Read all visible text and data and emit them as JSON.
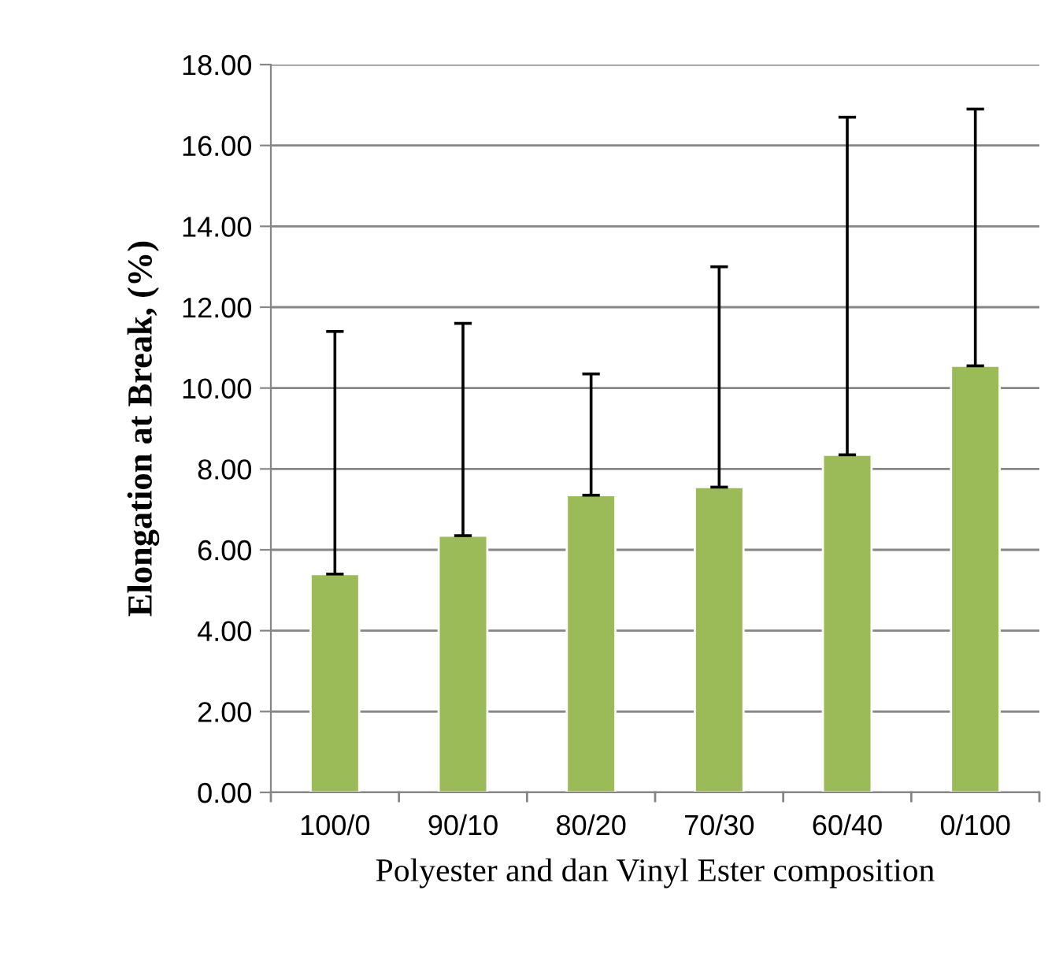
{
  "chart_data": {
    "type": "bar",
    "xlabel": "Polyester and dan Vinyl Ester composition",
    "ylabel": "Elongation at Break, (%)",
    "categories": [
      "100/0",
      "90/10",
      "80/20",
      "70/30",
      "60/40",
      "0/100"
    ],
    "values": [
      5.4,
      6.35,
      7.35,
      7.55,
      8.35,
      10.55
    ],
    "errors": [
      [
        5.4,
        11.4
      ],
      [
        6.35,
        11.6
      ],
      [
        7.35,
        10.35
      ],
      [
        7.55,
        13.0
      ],
      [
        8.35,
        16.7
      ],
      [
        10.55,
        16.9
      ]
    ],
    "color": "#9bbb59",
    "ylim": [
      0,
      18
    ],
    "yticks": [
      {
        "value": 0,
        "label": "0.00"
      },
      {
        "value": 2,
        "label": "2.00"
      },
      {
        "value": 4,
        "label": "4.00"
      },
      {
        "value": 6,
        "label": "6.00"
      },
      {
        "value": 8,
        "label": "8.00"
      },
      {
        "value": 10,
        "label": "10.00"
      },
      {
        "value": 12,
        "label": "12.00"
      },
      {
        "value": 14,
        "label": "14.00"
      },
      {
        "value": 16,
        "label": "16.00"
      },
      {
        "value": 18,
        "label": "18.00"
      }
    ],
    "grid": "y",
    "legend": false
  }
}
